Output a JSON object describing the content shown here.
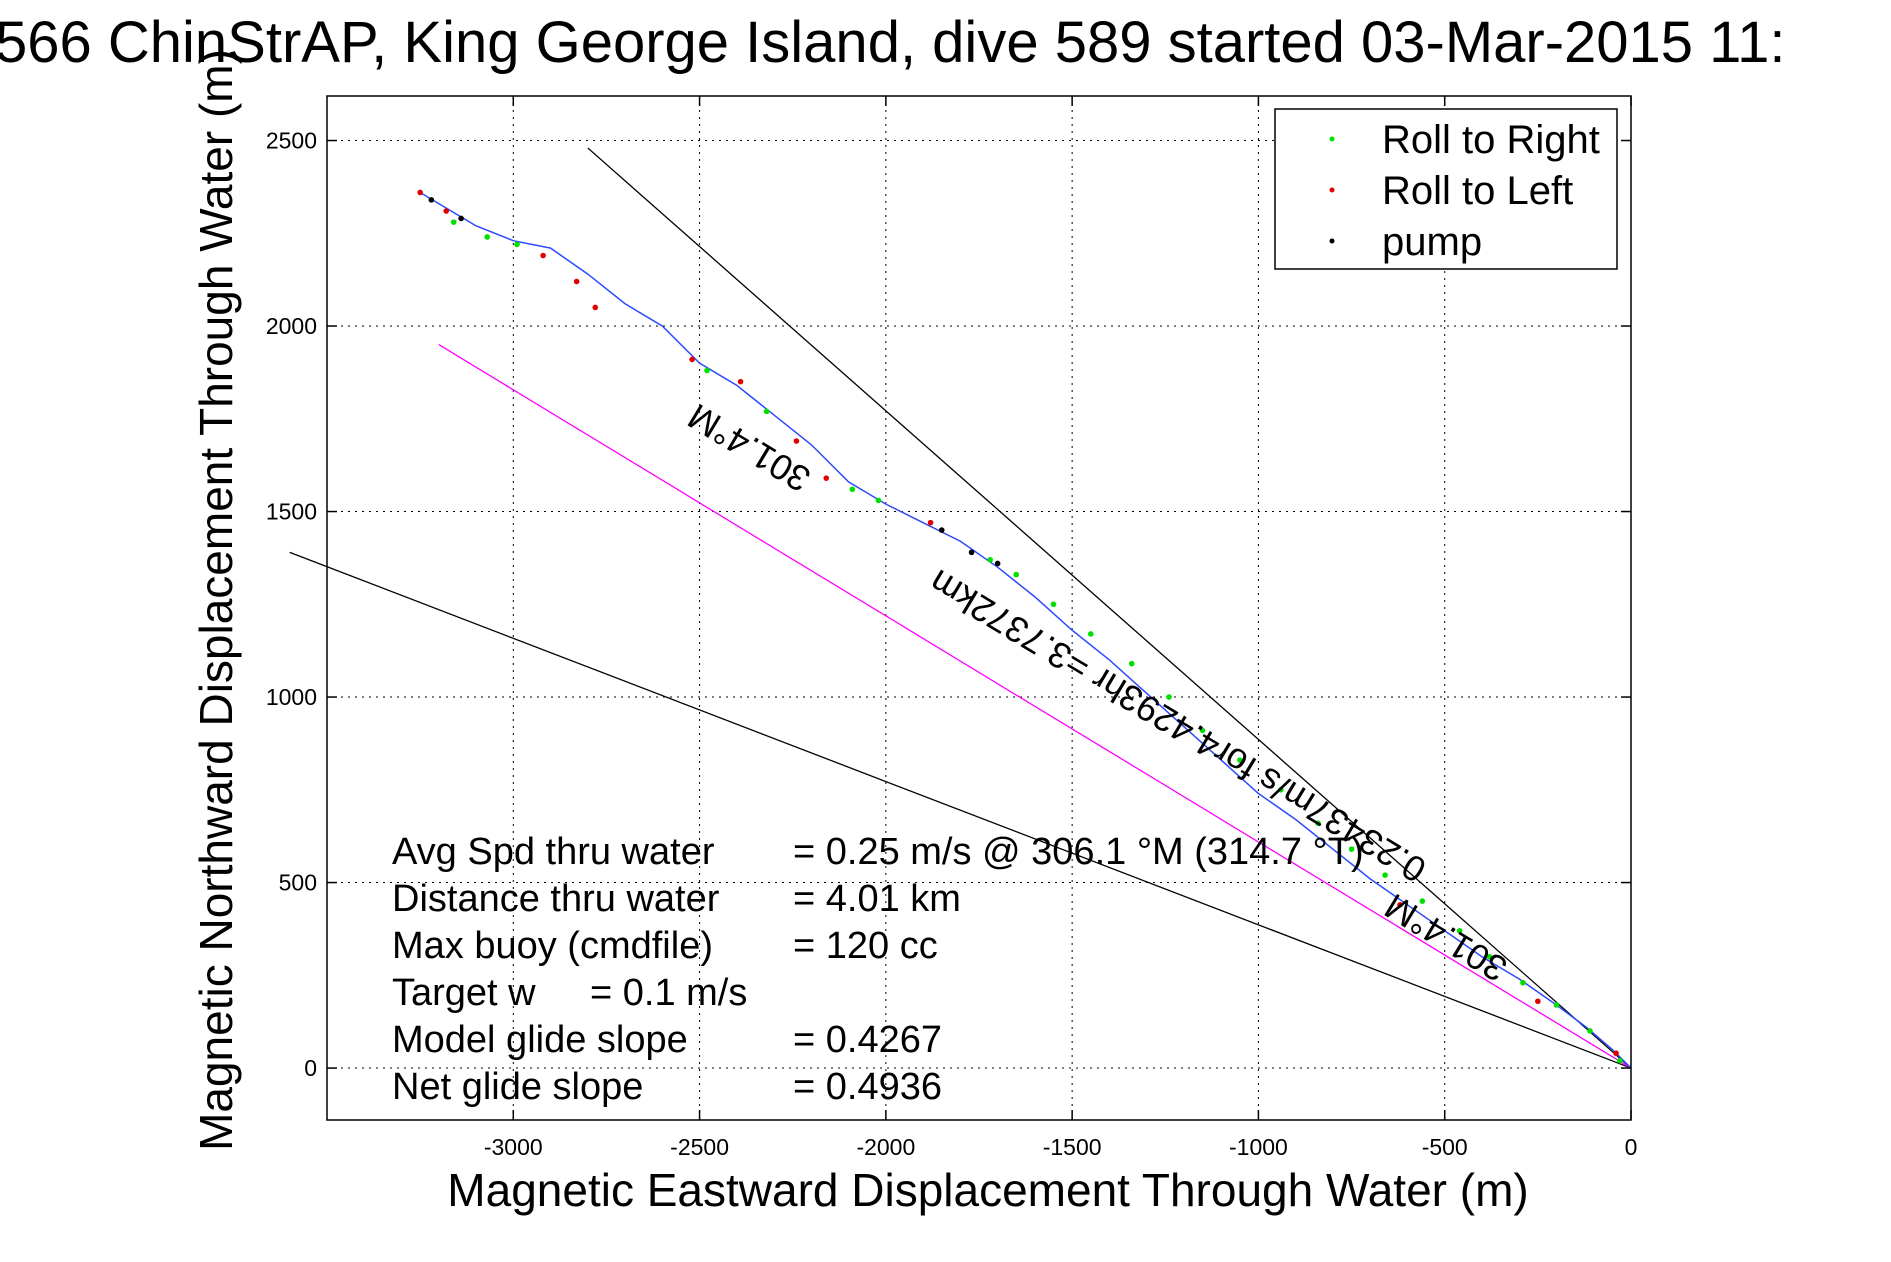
{
  "chart_data": {
    "type": "line",
    "title": "566 ChinStrAP, King George Island, dive 589 started 03-Mar-2015 11:",
    "xlabel": "Magnetic Eastward Displacement Through Water (m)",
    "ylabel": "Magnetic Northward Displacement Through Water (m)",
    "xlim": [
      -3500,
      0
    ],
    "ylim": [
      -140,
      2620
    ],
    "xticks": [
      -3000,
      -2500,
      -2000,
      -1500,
      -1000,
      -500,
      0
    ],
    "yticks": [
      0,
      500,
      1000,
      1500,
      2000,
      2500
    ],
    "grid": true,
    "legend": {
      "position": "top-right",
      "entries": [
        {
          "label": "Roll to Right",
          "color": "#00e000"
        },
        {
          "label": "Roll to Left",
          "color": "#e00000"
        },
        {
          "label": "pump",
          "color": "#000000"
        }
      ]
    },
    "track": {
      "color": "#2b4bff",
      "x": [
        0,
        -50,
        -120,
        -200,
        -300,
        -400,
        -500,
        -600,
        -700,
        -800,
        -900,
        -1000,
        -1100,
        -1200,
        -1300,
        -1400,
        -1500,
        -1600,
        -1700,
        -1800,
        -1900,
        -2000,
        -2050,
        -2100,
        -2200,
        -2300,
        -2400,
        -2500,
        -2600,
        -2700,
        -2800,
        -2900,
        -3000,
        -3100,
        -3150,
        -3250
      ],
      "y": [
        0,
        50,
        110,
        170,
        240,
        300,
        370,
        440,
        510,
        590,
        670,
        740,
        830,
        920,
        1010,
        1100,
        1180,
        1270,
        1350,
        1420,
        1470,
        1520,
        1550,
        1580,
        1680,
        1760,
        1840,
        1900,
        2000,
        2060,
        2140,
        2210,
        2230,
        2270,
        2300,
        2360
      ]
    },
    "roll_right": {
      "x": [
        -30,
        -110,
        -200,
        -290,
        -380,
        -460,
        -560,
        -660,
        -750,
        -840,
        -940,
        -1050,
        -1150,
        -1240,
        -1340,
        -1450,
        -1550,
        -1650,
        -1720,
        -2020,
        -2090,
        -2320,
        -2480,
        -2990,
        -3070,
        -3160
      ],
      "y": [
        20,
        100,
        170,
        230,
        300,
        370,
        450,
        520,
        590,
        660,
        750,
        830,
        910,
        1000,
        1090,
        1170,
        1250,
        1330,
        1370,
        1530,
        1560,
        1770,
        1880,
        2220,
        2240,
        2280
      ]
    },
    "roll_left": {
      "x": [
        -40,
        -250,
        -620,
        -1880,
        -2160,
        -2240,
        -2390,
        -2520,
        -2780,
        -2830,
        -2920,
        -3180,
        -3250
      ],
      "y": [
        40,
        180,
        440,
        1470,
        1590,
        1690,
        1850,
        1910,
        2050,
        2120,
        2190,
        2310,
        2360
      ]
    },
    "pump": {
      "x": [
        -1700,
        -1770,
        -1850,
        -3140,
        -3220
      ],
      "y": [
        1360,
        1390,
        1450,
        2290,
        2340
      ]
    },
    "reference_lines": [
      {
        "name": "upper",
        "color": "#000000",
        "x": [
          0,
          -2800
        ],
        "y": [
          0,
          2480
        ]
      },
      {
        "name": "lower",
        "color": "#000000",
        "x": [
          0,
          -3600
        ],
        "y": [
          0,
          1390
        ]
      },
      {
        "name": "heading",
        "color": "#ff00ff",
        "x": [
          0,
          -3200
        ],
        "y": [
          0,
          1950
        ]
      }
    ],
    "annotations": [
      {
        "text": "301.4°M",
        "x": -2350,
        "y": 1700,
        "angle": 211
      },
      {
        "text": "0.23437m/s for4.4293hr =3.7372km",
        "x": -1200,
        "y": 950,
        "angle": 211
      },
      {
        "text": "301.4°M",
        "x": -480,
        "y": 380,
        "angle": 211
      }
    ]
  },
  "stats": {
    "labels": [
      "Avg Spd thru water",
      "Distance thru water",
      "Max buoy (cmdfile)",
      "Target w",
      "Model glide slope",
      "Net glide slope"
    ],
    "values": [
      "=  0.25 m/s @ 306.1  °M (314.7 °T)",
      "=  4.01 km",
      "= 120 cc",
      "= 0.1 m/s",
      "= 0.4267",
      "= 0.4936"
    ]
  }
}
